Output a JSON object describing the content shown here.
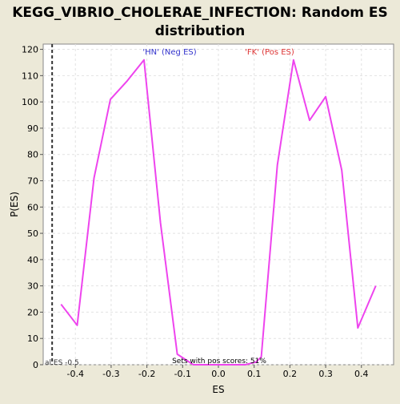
{
  "chart_data": {
    "type": "line",
    "title_lines": [
      "KEGG_VIBRIO_CHOLERAE_INFECTION: Random ES",
      "distribution"
    ],
    "xlabel": "ES",
    "ylabel": "P(ES)",
    "xlim": [
      -0.49,
      0.49
    ],
    "ylim": [
      0,
      122
    ],
    "x_ticks": [
      -0.4,
      -0.3,
      -0.2,
      -0.1,
      0.0,
      0.1,
      0.2,
      0.3,
      0.4
    ],
    "x_tick_labels": [
      "-0.4",
      "-0.3",
      "-0.2",
      "-0.1",
      "0.0",
      "0.1",
      "0.2",
      "0.3",
      "0.4"
    ],
    "y_ticks": [
      0,
      10,
      20,
      30,
      40,
      50,
      60,
      70,
      80,
      90,
      100,
      110,
      120
    ],
    "y_tick_labels": [
      "0",
      "10",
      "20",
      "30",
      "40",
      "50",
      "60",
      "70",
      "80",
      "90",
      "100",
      "110",
      "120"
    ],
    "grid": true,
    "series": [
      {
        "color": "#ee44ee",
        "x": [
          -0.44,
          -0.395,
          -0.348,
          -0.302,
          -0.255,
          -0.208,
          -0.162,
          -0.115,
          -0.07,
          -0.02,
          0.03,
          0.075,
          0.105,
          0.12,
          0.165,
          0.21,
          0.255,
          0.3,
          0.345,
          0.39,
          0.44
        ],
        "y": [
          23,
          15,
          71,
          101,
          108,
          116,
          54,
          4,
          0,
          0,
          0,
          0,
          1,
          3,
          76,
          116,
          93,
          102,
          74,
          14,
          30
        ]
      }
    ],
    "vline": {
      "x": -0.465,
      "color": "#333333"
    },
    "annotations": {
      "neg_label": "'HN' (Neg ES)",
      "neg_color": "#3333cc",
      "pos_label": "'FK' (Pos ES)",
      "pos_color": "#dd3333",
      "bottom_left": "al ES -0.5",
      "bottom_center": "Sets with pos scores: 51%"
    }
  }
}
